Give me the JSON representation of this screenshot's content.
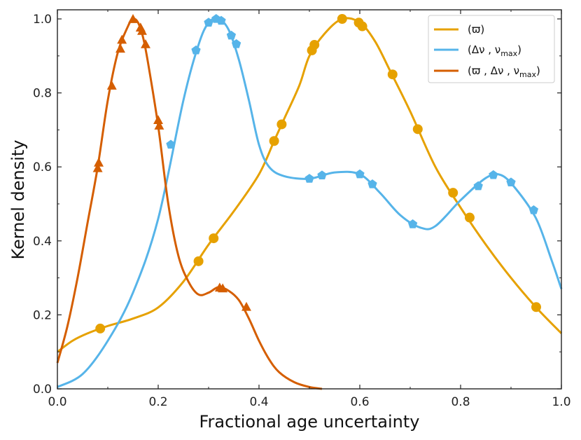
{
  "chart_data": {
    "type": "line",
    "title": "",
    "xlabel": "Fractional age uncertainty",
    "ylabel": "Kernel density",
    "xlim": [
      0.0,
      1.0
    ],
    "ylim": [
      0.0,
      1.02
    ],
    "x_ticks": [
      "0.0",
      "0.2",
      "0.4",
      "0.6",
      "0.8",
      "1.0"
    ],
    "y_ticks": [
      "0.0",
      "0.2",
      "0.4",
      "0.6",
      "0.8",
      "1.0"
    ],
    "grid": false,
    "legend_position": "top-right",
    "series": [
      {
        "name": "(ϖ)",
        "legend_main": "(ϖ)",
        "legend_sub": "",
        "legend_tail": "",
        "color": "#E6A100",
        "marker": "circle",
        "curve": [
          [
            0.0,
            0.1
          ],
          [
            0.03,
            0.13
          ],
          [
            0.06,
            0.15
          ],
          [
            0.1,
            0.17
          ],
          [
            0.15,
            0.19
          ],
          [
            0.2,
            0.22
          ],
          [
            0.25,
            0.29
          ],
          [
            0.3,
            0.39
          ],
          [
            0.35,
            0.48
          ],
          [
            0.4,
            0.58
          ],
          [
            0.43,
            0.67
          ],
          [
            0.45,
            0.73
          ],
          [
            0.48,
            0.82
          ],
          [
            0.5,
            0.9
          ],
          [
            0.53,
            0.96
          ],
          [
            0.565,
            1.0
          ],
          [
            0.6,
            0.99
          ],
          [
            0.63,
            0.94
          ],
          [
            0.66,
            0.86
          ],
          [
            0.7,
            0.75
          ],
          [
            0.75,
            0.6
          ],
          [
            0.8,
            0.49
          ],
          [
            0.85,
            0.39
          ],
          [
            0.9,
            0.3
          ],
          [
            0.95,
            0.22
          ],
          [
            1.0,
            0.15
          ]
        ],
        "points": [
          [
            0.085,
            0.163
          ],
          [
            0.28,
            0.345
          ],
          [
            0.31,
            0.407
          ],
          [
            0.43,
            0.67
          ],
          [
            0.445,
            0.715
          ],
          [
            0.505,
            0.915
          ],
          [
            0.51,
            0.93
          ],
          [
            0.565,
            1.0
          ],
          [
            0.598,
            0.99
          ],
          [
            0.605,
            0.98
          ],
          [
            0.665,
            0.85
          ],
          [
            0.715,
            0.702
          ],
          [
            0.785,
            0.53
          ],
          [
            0.818,
            0.463
          ],
          [
            0.95,
            0.221
          ]
        ]
      },
      {
        "name": "(Δν , ν max)",
        "legend_main": "(Δν , ν",
        "legend_sub": "max",
        "legend_tail": ")",
        "color": "#56B4E9",
        "marker": "pentagon",
        "curve": [
          [
            0.0,
            0.005
          ],
          [
            0.05,
            0.04
          ],
          [
            0.1,
            0.13
          ],
          [
            0.15,
            0.26
          ],
          [
            0.2,
            0.46
          ],
          [
            0.25,
            0.78
          ],
          [
            0.28,
            0.93
          ],
          [
            0.3,
            0.99
          ],
          [
            0.32,
            1.0
          ],
          [
            0.34,
            0.97
          ],
          [
            0.36,
            0.89
          ],
          [
            0.38,
            0.78
          ],
          [
            0.4,
            0.66
          ],
          [
            0.42,
            0.6
          ],
          [
            0.45,
            0.575
          ],
          [
            0.5,
            0.568
          ],
          [
            0.55,
            0.585
          ],
          [
            0.6,
            0.58
          ],
          [
            0.64,
            0.53
          ],
          [
            0.68,
            0.47
          ],
          [
            0.72,
            0.436
          ],
          [
            0.75,
            0.44
          ],
          [
            0.8,
            0.51
          ],
          [
            0.85,
            0.57
          ],
          [
            0.88,
            0.578
          ],
          [
            0.91,
            0.54
          ],
          [
            0.95,
            0.46
          ],
          [
            0.98,
            0.35
          ],
          [
            1.0,
            0.27
          ]
        ],
        "points": [
          [
            0.225,
            0.66
          ],
          [
            0.275,
            0.915
          ],
          [
            0.3,
            0.99
          ],
          [
            0.315,
            1.0
          ],
          [
            0.325,
            0.995
          ],
          [
            0.345,
            0.955
          ],
          [
            0.355,
            0.932
          ],
          [
            0.5,
            0.568
          ],
          [
            0.525,
            0.577
          ],
          [
            0.6,
            0.58
          ],
          [
            0.625,
            0.553
          ],
          [
            0.705,
            0.445
          ],
          [
            0.835,
            0.548
          ],
          [
            0.865,
            0.578
          ],
          [
            0.9,
            0.558
          ],
          [
            0.945,
            0.483
          ]
        ]
      },
      {
        "name": "(ϖ , Δν , ν max)",
        "legend_main": "(ϖ , Δν , ν",
        "legend_sub": "max",
        "legend_tail": ")",
        "color": "#D55E00",
        "marker": "triangle",
        "curve": [
          [
            0.0,
            0.07
          ],
          [
            0.02,
            0.17
          ],
          [
            0.04,
            0.3
          ],
          [
            0.06,
            0.45
          ],
          [
            0.08,
            0.6
          ],
          [
            0.1,
            0.78
          ],
          [
            0.12,
            0.91
          ],
          [
            0.14,
            0.98
          ],
          [
            0.15,
            1.0
          ],
          [
            0.16,
            0.99
          ],
          [
            0.17,
            0.95
          ],
          [
            0.18,
            0.88
          ],
          [
            0.2,
            0.71
          ],
          [
            0.22,
            0.5
          ],
          [
            0.24,
            0.36
          ],
          [
            0.26,
            0.29
          ],
          [
            0.28,
            0.255
          ],
          [
            0.3,
            0.26
          ],
          [
            0.32,
            0.275
          ],
          [
            0.34,
            0.265
          ],
          [
            0.36,
            0.24
          ],
          [
            0.38,
            0.19
          ],
          [
            0.4,
            0.13
          ],
          [
            0.42,
            0.08
          ],
          [
            0.44,
            0.045
          ],
          [
            0.47,
            0.018
          ],
          [
            0.5,
            0.005
          ],
          [
            0.525,
            0.0
          ]
        ],
        "points": [
          [
            0.08,
            0.595
          ],
          [
            0.082,
            0.61
          ],
          [
            0.108,
            0.818
          ],
          [
            0.125,
            0.918
          ],
          [
            0.128,
            0.942
          ],
          [
            0.15,
            0.998
          ],
          [
            0.165,
            0.975
          ],
          [
            0.168,
            0.966
          ],
          [
            0.175,
            0.93
          ],
          [
            0.2,
            0.725
          ],
          [
            0.202,
            0.71
          ],
          [
            0.322,
            0.272
          ],
          [
            0.328,
            0.27
          ],
          [
            0.375,
            0.22
          ]
        ]
      }
    ]
  }
}
